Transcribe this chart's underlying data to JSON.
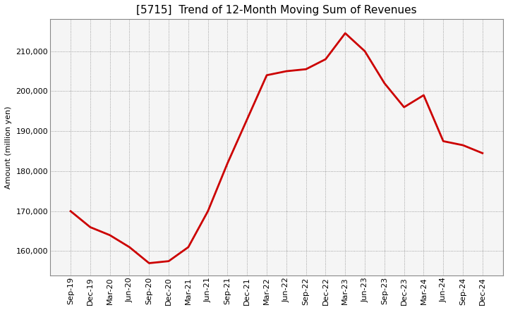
{
  "title": "[5715]  Trend of 12-Month Moving Sum of Revenues",
  "ylabel": "Amount (million yen)",
  "x_labels": [
    "Sep-19",
    "Dec-19",
    "Mar-20",
    "Jun-20",
    "Sep-20",
    "Dec-20",
    "Mar-21",
    "Jun-21",
    "Sep-21",
    "Dec-21",
    "Mar-22",
    "Jun-22",
    "Sep-22",
    "Dec-22",
    "Mar-23",
    "Jun-23",
    "Sep-23",
    "Dec-23",
    "Mar-24",
    "Jun-24",
    "Sep-24",
    "Dec-24"
  ],
  "y_values": [
    170000,
    166000,
    164000,
    161000,
    157000,
    157500,
    161000,
    170000,
    182000,
    193000,
    204000,
    205000,
    205500,
    208000,
    214500,
    210000,
    202000,
    196000,
    199000,
    187500,
    186500,
    184500
  ],
  "line_color": "#cc0000",
  "line_width": 2.0,
  "ylim_min": 154000,
  "ylim_max": 218000,
  "yticks": [
    160000,
    170000,
    180000,
    190000,
    200000,
    210000
  ],
  "grid_color": "#888888",
  "bg_color": "#ffffff",
  "plot_bg_color": "#f5f5f5",
  "title_fontsize": 11,
  "axis_fontsize": 8,
  "ylabel_fontsize": 8
}
